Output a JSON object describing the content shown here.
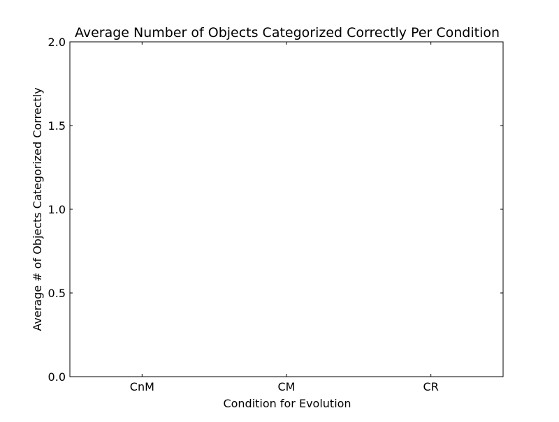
{
  "chart_data": {
    "type": "bar",
    "title": "Average Number of Objects Categorized Correctly Per Condition",
    "xlabel": "Condition for Evolution",
    "ylabel": "Average # of Objects Categorized Correctly",
    "categories": [
      "CnM",
      "CM",
      "CR"
    ],
    "values": [
      0,
      0,
      0
    ],
    "ylim": [
      0,
      2
    ],
    "yticks": [
      "0.0",
      "0.5",
      "1.0",
      "1.5",
      "2.0"
    ],
    "grid": false,
    "legend": "none",
    "bar_color": "#1f3bff"
  }
}
